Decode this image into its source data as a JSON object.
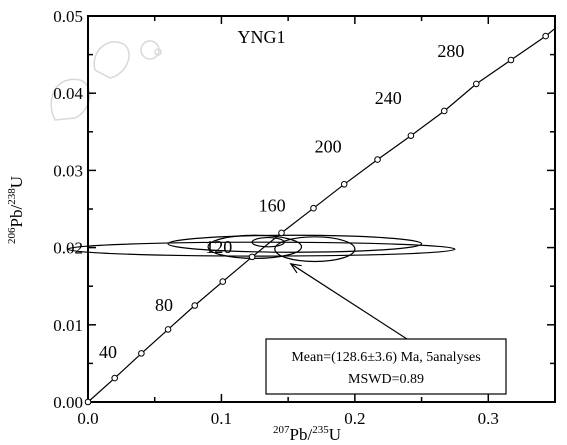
{
  "chart_data": {
    "type": "scatter",
    "title": "YNG1",
    "xlabel": {
      "sup1": "207",
      "main1": "Pb/",
      "sup2": "235",
      "main2": "U"
    },
    "ylabel": {
      "sup1": "206",
      "main1": "Pb/",
      "sup2": "238",
      "main2": "U"
    },
    "xlim": [
      0.0,
      0.35
    ],
    "ylim": [
      0.0,
      0.05
    ],
    "xticks": [
      {
        "value": 0.0,
        "label": "0.0"
      },
      {
        "value": 0.1,
        "label": "0.1"
      },
      {
        "value": 0.2,
        "label": "0.2"
      },
      {
        "value": 0.3,
        "label": "0.3"
      }
    ],
    "yticks": [
      {
        "value": 0.0,
        "label": "0.00"
      },
      {
        "value": 0.01,
        "label": "0.01"
      },
      {
        "value": 0.02,
        "label": "0.02"
      },
      {
        "value": 0.03,
        "label": "0.03"
      },
      {
        "value": 0.04,
        "label": "0.04"
      },
      {
        "value": 0.05,
        "label": "0.05"
      }
    ],
    "concordia_points": [
      {
        "x": 0.0,
        "y": 0.0
      },
      {
        "x": 0.02,
        "y": 0.0031
      },
      {
        "x": 0.04,
        "y": 0.0063
      },
      {
        "x": 0.06,
        "y": 0.0094
      },
      {
        "x": 0.08,
        "y": 0.0125
      },
      {
        "x": 0.101,
        "y": 0.0156
      },
      {
        "x": 0.123,
        "y": 0.0188
      },
      {
        "x": 0.145,
        "y": 0.0219
      },
      {
        "x": 0.169,
        "y": 0.0251
      },
      {
        "x": 0.192,
        "y": 0.0282
      },
      {
        "x": 0.217,
        "y": 0.0314
      },
      {
        "x": 0.242,
        "y": 0.0345
      },
      {
        "x": 0.267,
        "y": 0.0377
      },
      {
        "x": 0.291,
        "y": 0.0412
      },
      {
        "x": 0.317,
        "y": 0.0443
      },
      {
        "x": 0.343,
        "y": 0.0474
      }
    ],
    "age_labels": [
      {
        "text": "40",
        "x": 0.015,
        "y": 0.0057
      },
      {
        "text": "80",
        "x": 0.057,
        "y": 0.0118
      },
      {
        "text": "120",
        "x": 0.098,
        "y": 0.0193
      },
      {
        "text": "160",
        "x": 0.138,
        "y": 0.0247
      },
      {
        "text": "200",
        "x": 0.18,
        "y": 0.0323
      },
      {
        "text": "240",
        "x": 0.225,
        "y": 0.0386
      },
      {
        "text": "280",
        "x": 0.272,
        "y": 0.0447
      }
    ],
    "ellipses": [
      {
        "cx": 0.13,
        "cy": 0.0198,
        "rx": 0.145,
        "ry": 0.0009
      },
      {
        "cx": 0.155,
        "cy": 0.0205,
        "rx": 0.095,
        "ry": 0.0011
      },
      {
        "cx": 0.125,
        "cy": 0.0201,
        "rx": 0.035,
        "ry": 0.0015
      },
      {
        "cx": 0.17,
        "cy": 0.0198,
        "rx": 0.03,
        "ry": 0.0016
      },
      {
        "cx": 0.135,
        "cy": 0.0207,
        "rx": 0.012,
        "ry": 0.0006
      }
    ],
    "arrow": {
      "from": {
        "x": 0.245,
        "y": 0.0075
      },
      "to": {
        "x": 0.152,
        "y": 0.0179
      }
    },
    "annotation": {
      "line1": "Mean=(128.6±3.6) Ma, 5analyses",
      "line2": "MSWD=0.89"
    }
  }
}
